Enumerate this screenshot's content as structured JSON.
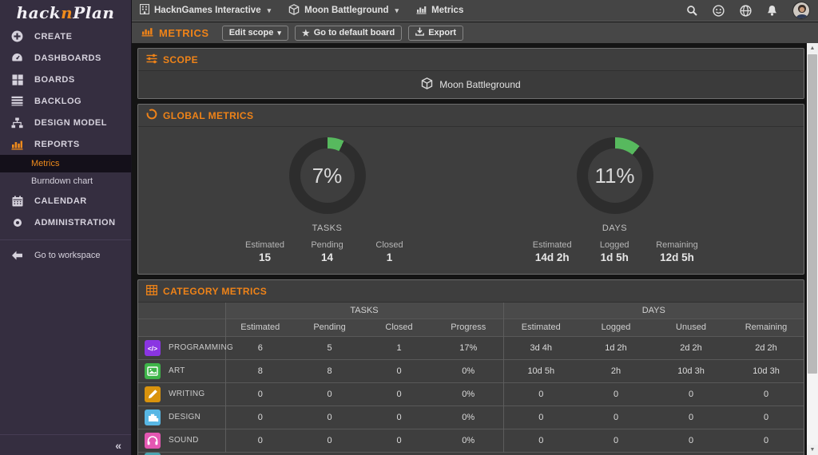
{
  "colors": {
    "accent": "#ef8318",
    "donut_green": "#57b95e",
    "donut_track": "#2d2d2d",
    "sidebar_bg": "#352e40",
    "panel_bg": "#3e3e3e"
  },
  "sidebar": {
    "logo": {
      "part1": "hack",
      "part2": "n",
      "part3": "Plan"
    },
    "items": [
      {
        "label": "CREATE",
        "icon": "plus-circle-icon"
      },
      {
        "label": "DASHBOARDS",
        "icon": "gauge-icon"
      },
      {
        "label": "BOARDS",
        "icon": "board-grid-icon"
      },
      {
        "label": "BACKLOG",
        "icon": "list-icon"
      },
      {
        "label": "DESIGN MODEL",
        "icon": "sitemap-icon"
      },
      {
        "label": "REPORTS",
        "icon": "bar-chart-icon",
        "active": true
      },
      {
        "label": "CALENDAR",
        "icon": "calendar-icon"
      },
      {
        "label": "ADMINISTRATION",
        "icon": "gear-icon"
      }
    ],
    "report_subitems": [
      {
        "label": "Metrics",
        "active": true
      },
      {
        "label": "Burndown chart",
        "active": false
      }
    ],
    "workspace_link": "Go to workspace",
    "collapse_glyph": "«"
  },
  "topbar": {
    "workspace": "HacknGames Interactive",
    "project": "Moon Battleground",
    "section": "Metrics",
    "caret": "▾"
  },
  "toolbar": {
    "title": "METRICS",
    "edit_scope_label": "Edit scope",
    "caret": "▾",
    "star": "★",
    "default_board_label": "Go to default board",
    "export_label": "Export"
  },
  "scope_panel": {
    "title": "SCOPE",
    "project": "Moon Battleground"
  },
  "global_metrics": {
    "title": "GLOBAL METRICS",
    "tasks": {
      "percent": 7,
      "percent_label": "7%",
      "caption": "TASKS",
      "stats": [
        {
          "label": "Estimated",
          "value": "15"
        },
        {
          "label": "Pending",
          "value": "14"
        },
        {
          "label": "Closed",
          "value": "1"
        }
      ]
    },
    "days": {
      "percent": 11,
      "percent_label": "11%",
      "caption": "DAYS",
      "stats": [
        {
          "label": "Estimated",
          "value": "14d 2h"
        },
        {
          "label": "Logged",
          "value": "1d 5h"
        },
        {
          "label": "Remaining",
          "value": "12d 5h"
        }
      ]
    }
  },
  "category_table": {
    "title": "CATEGORY METRICS",
    "groups": {
      "tasks": "TASKS",
      "days": "DAYS"
    },
    "task_columns": [
      "Estimated",
      "Pending",
      "Closed",
      "Progress"
    ],
    "day_columns": [
      "Estimated",
      "Logged",
      "Unused",
      "Remaining"
    ],
    "rows": [
      {
        "name": "PROGRAMMING",
        "color": "#8a35e2",
        "values": [
          "6",
          "5",
          "1",
          "17%",
          "3d 4h",
          "1d 2h",
          "2d 2h",
          "2d 2h"
        ]
      },
      {
        "name": "ART",
        "color": "#3eb549",
        "values": [
          "8",
          "8",
          "0",
          "0%",
          "10d 5h",
          "2h",
          "10d 3h",
          "10d 3h"
        ]
      },
      {
        "name": "WRITING",
        "color": "#d9930d",
        "values": [
          "0",
          "0",
          "0",
          "0%",
          "0",
          "0",
          "0",
          "0"
        ]
      },
      {
        "name": "DESIGN",
        "color": "#58b7e4",
        "values": [
          "0",
          "0",
          "0",
          "0%",
          "0",
          "0",
          "0",
          "0"
        ]
      },
      {
        "name": "SOUND",
        "color": "#e457b2",
        "values": [
          "0",
          "0",
          "0",
          "0%",
          "0",
          "0",
          "0",
          "0"
        ]
      },
      {
        "name": "",
        "color": "#4aa4b0",
        "partial": true
      }
    ]
  }
}
